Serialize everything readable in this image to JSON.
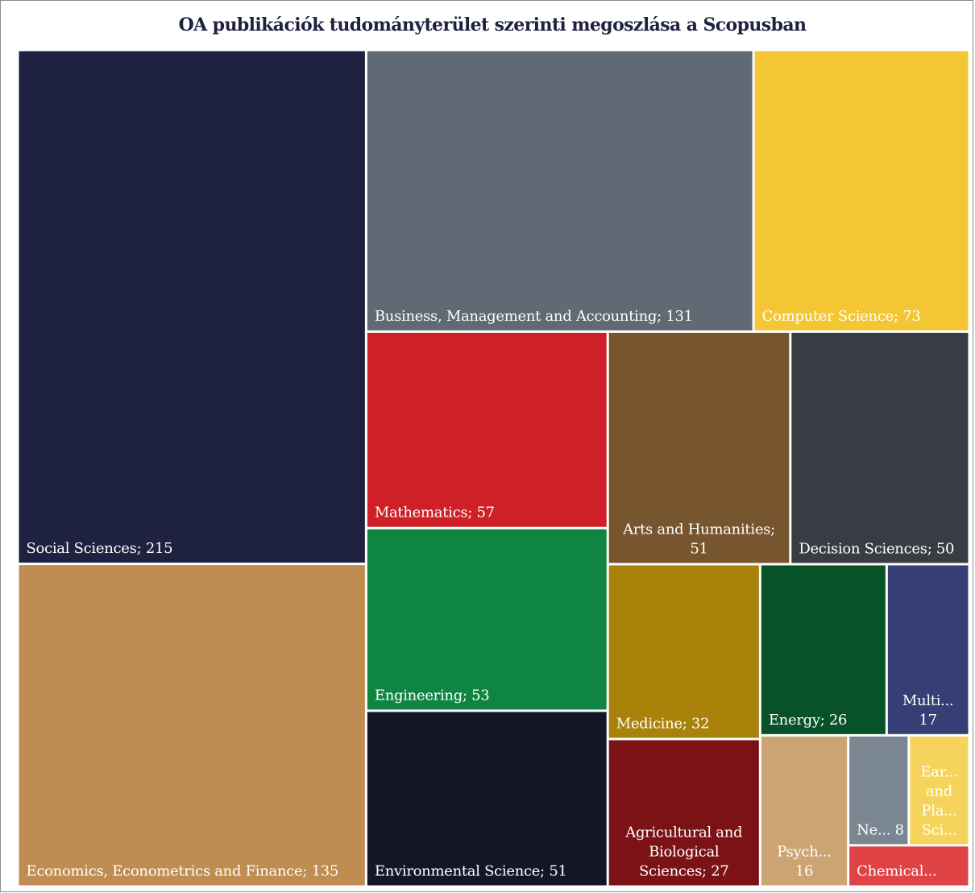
{
  "chart_data": {
    "type": "treemap",
    "title": "OA publikációk tudományterület szerinti megoszlása a Scopusban",
    "categories": [
      "Social Sciences",
      "Economics, Econometrics and Finance",
      "Business, Management and Accounting",
      "Computer Science",
      "Mathematics",
      "Engineering",
      "Environmental Science",
      "Arts and Humanities",
      "Decision Sciences",
      "Medicine",
      "Agricultural and Biological Sciences",
      "Energy",
      "Multi...",
      "Psych...",
      "Ne...",
      "Ear... and Pla... Sci...",
      "Chemical..."
    ],
    "values": [
      215,
      135,
      131,
      73,
      57,
      53,
      51,
      51,
      50,
      32,
      27,
      26,
      17,
      16,
      8,
      8,
      6
    ],
    "colors": [
      "#1e2140",
      "#bf8d52",
      "#5f6a74",
      "#f4c633",
      "#cf2027",
      "#0f8542",
      "#131626",
      "#77552e",
      "#383d43",
      "#a9820a",
      "#7a1216",
      "#08522a",
      "#353e75",
      "#cca474",
      "#7a8691",
      "#f6d45c",
      "#e04346"
    ]
  }
}
